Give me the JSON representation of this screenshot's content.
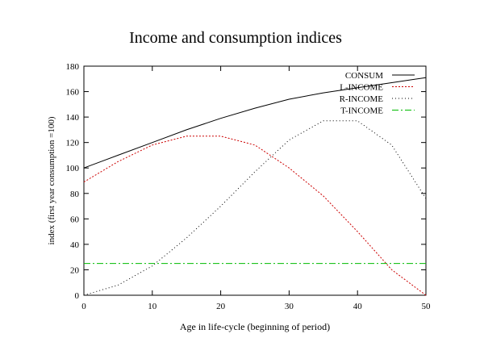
{
  "chart_data": {
    "type": "line",
    "title": "Income and consumption indices",
    "xlabel": "Age in life-cycle (beginning of period)",
    "ylabel": "index (first year consumption =100)",
    "xlim": [
      0,
      50
    ],
    "ylim": [
      0,
      180
    ],
    "xticks": [
      0,
      10,
      20,
      30,
      40,
      50
    ],
    "yticks": [
      0,
      20,
      40,
      60,
      80,
      100,
      120,
      140,
      160,
      180
    ],
    "grid": false,
    "legend_position": "top-right",
    "series": [
      {
        "name": "CONSUM",
        "color": "#000000",
        "style": "solid",
        "x": [
          0,
          5,
          10,
          15,
          20,
          25,
          30,
          35,
          40,
          45,
          50
        ],
        "y": [
          100,
          110,
          120,
          130,
          139,
          147,
          154,
          159,
          163,
          167,
          171
        ]
      },
      {
        "name": "L-INCOME",
        "color": "#cc0000",
        "style": "dotted-fine",
        "x": [
          0,
          5,
          10,
          15,
          20,
          25,
          30,
          35,
          40,
          45,
          50
        ],
        "y": [
          89,
          105,
          118,
          125,
          125,
          118,
          100,
          78,
          50,
          20,
          0
        ]
      },
      {
        "name": "R-INCOME",
        "color": "#000000",
        "style": "dotted",
        "x": [
          0,
          5,
          10,
          15,
          20,
          25,
          30,
          35,
          40,
          45,
          50
        ],
        "y": [
          0,
          8,
          23,
          45,
          70,
          97,
          122,
          137,
          137,
          118,
          76
        ]
      },
      {
        "name": "T-INCOME",
        "color": "#00bb00",
        "style": "dashdot",
        "x": [
          0,
          50
        ],
        "y": [
          25,
          25
        ]
      }
    ]
  }
}
